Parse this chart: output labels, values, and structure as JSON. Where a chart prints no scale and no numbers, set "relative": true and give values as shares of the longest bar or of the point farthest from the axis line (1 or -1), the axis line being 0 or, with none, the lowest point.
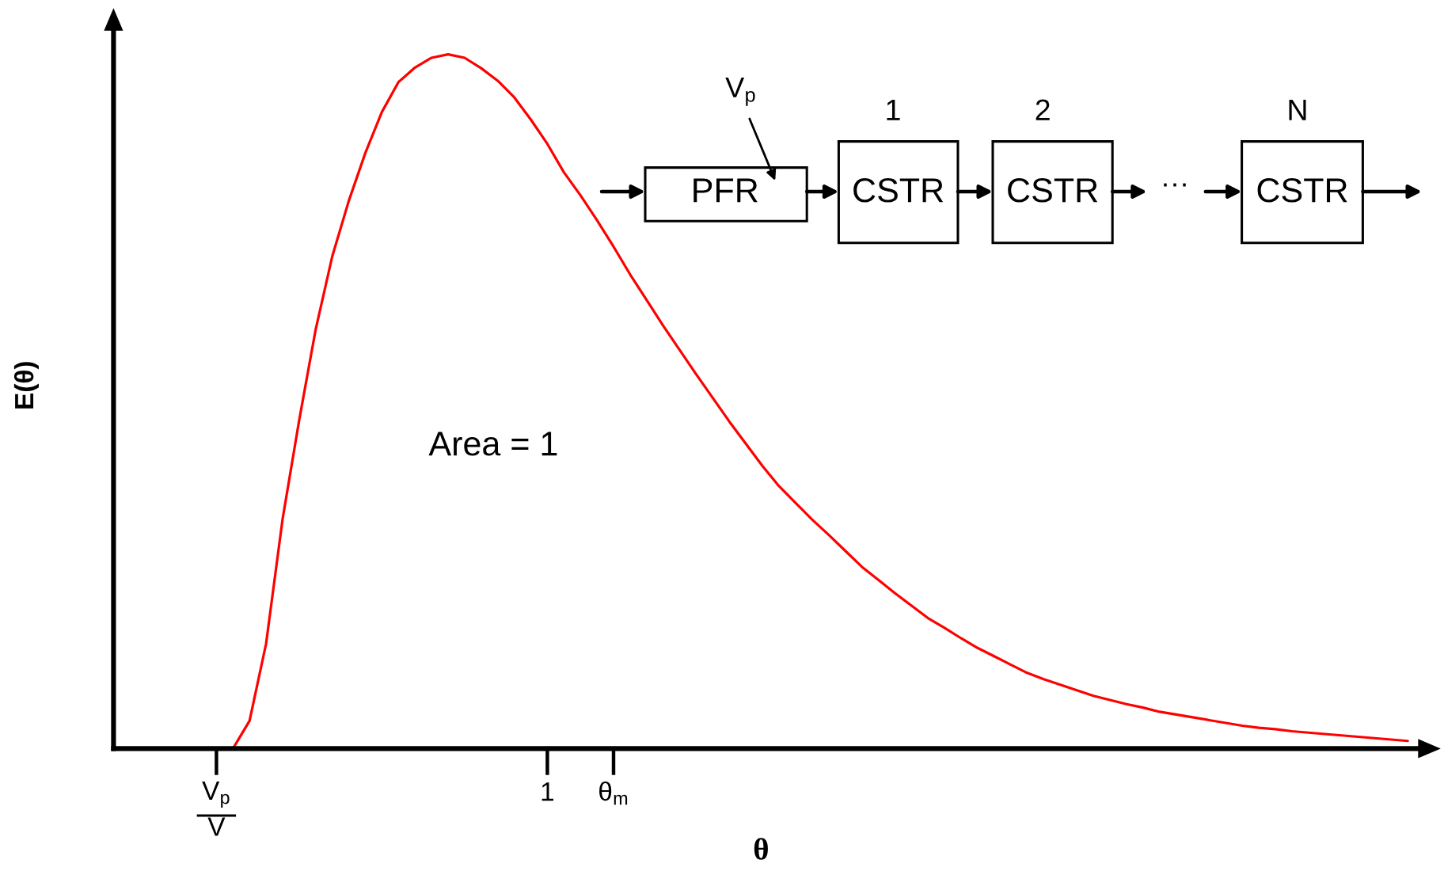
{
  "chart_data": {
    "type": "line",
    "relative": true,
    "xlabel": "θ",
    "ylabel": "E(θ)",
    "tick_labels": "x",
    "categories": [
      null,
      null,
      null,
      null,
      null,
      null,
      "V$_{p}$\nV",
      null,
      null,
      null,
      null,
      null,
      null,
      null,
      null,
      null,
      null,
      null,
      null,
      null,
      null,
      null,
      null,
      null,
      null,
      null,
      "1",
      null,
      null,
      null,
      "θ$_{m}$",
      null,
      null,
      null,
      null,
      null,
      null,
      null,
      null,
      null,
      null,
      null,
      null,
      null,
      null,
      null,
      null,
      null,
      null,
      null,
      null,
      null,
      null,
      null,
      null,
      null,
      null,
      null,
      null,
      null,
      null,
      null,
      null,
      null,
      null,
      null,
      null,
      null,
      null,
      null,
      null,
      null,
      null,
      null,
      null,
      null,
      null,
      null,
      null
    ],
    "series": [
      {
        "color": "#ff0000",
        "values": [
          null,
          null,
          null,
          null,
          null,
          null,
          0,
          0,
          0.04,
          0.151,
          0.331,
          0.473,
          0.604,
          0.709,
          0.789,
          0.858,
          0.917,
          0.96,
          0.981,
          0.995,
          1,
          0.995,
          0.98,
          0.962,
          0.938,
          0.906,
          0.871,
          0.83,
          0.797,
          0.761,
          0.723,
          0.683,
          0.646,
          0.609,
          0.574,
          0.539,
          0.505,
          0.471,
          0.439,
          0.407,
          0.378,
          0.354,
          0.33,
          0.308,
          0.285,
          0.262,
          0.243,
          0.224,
          0.206,
          0.188,
          0.174,
          0.159,
          0.145,
          0.133,
          0.121,
          0.109,
          0.1,
          0.092,
          0.084,
          0.076,
          0.07,
          0.064,
          0.059,
          0.053,
          0.049,
          0.045,
          0.041,
          0.037,
          0.033,
          0.03,
          0.028,
          0.025,
          0.023,
          0.021,
          0.019,
          0.017,
          0.015,
          0.013,
          0.011
        ]
      }
    ],
    "annotations": [
      "V$_{p}$",
      "PFR",
      "1",
      "CSTR",
      "2",
      "CSTR",
      "···",
      "N",
      "CSTR",
      "Area = 1"
    ]
  }
}
